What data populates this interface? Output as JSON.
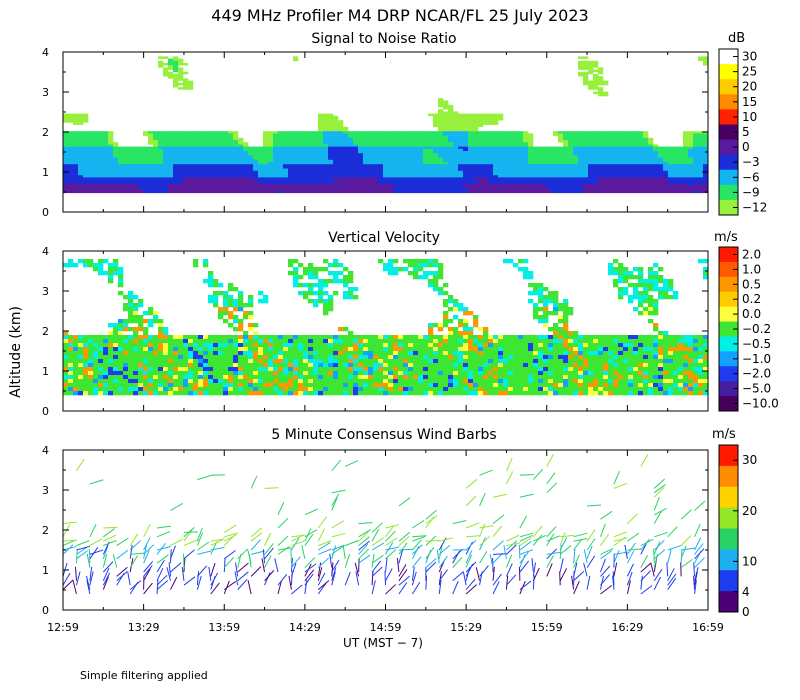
{
  "title": "449 MHz Profiler M4 DRP NCAR/FL 25 July 2023",
  "ylabel": "Altitude (km)",
  "xlabel": "UT   (MST − 7)",
  "x_ticks": [
    "12:59",
    "13:29",
    "13:59",
    "14:29",
    "14:59",
    "15:29",
    "15:59",
    "16:29",
    "16:59"
  ],
  "y_ticks": [
    "0",
    "1",
    "2",
    "3",
    "4"
  ],
  "footer_note": "Simple filtering applied",
  "chart_data": [
    {
      "type": "heatmap",
      "title": "Signal to Noise Ratio",
      "colorbar_unit": "dB",
      "colorbar_labels": [
        "30",
        "25",
        "20",
        "15",
        "10",
        "5",
        "0",
        "−3",
        "−6",
        "−9",
        "−12"
      ],
      "colorbar_colors": [
        "#ffffff",
        "#ffff00",
        "#ffcc00",
        "#ff8c00",
        "#ff2200",
        "#4a0060",
        "#5a1aa0",
        "#1a2dd8",
        "#14b4f0",
        "#28e664",
        "#96f03c"
      ],
      "ylim": [
        0,
        4
      ],
      "xlim": [
        "12:59",
        "16:59"
      ],
      "structure": [
        {
          "desc": "low SNR band",
          "altitude_km": [
            0.5,
            0.9
          ],
          "dB": -3
        },
        {
          "desc": "mid layer",
          "altitude_km": [
            0.9,
            1.6
          ],
          "dB": -6
        },
        {
          "desc": "upper returns",
          "altitude_km": [
            1.6,
            2.1
          ],
          "dB": -9
        },
        {
          "desc": "sparse aloft",
          "altitude_km": [
            2.5,
            3.9
          ],
          "dB": -12
        }
      ]
    },
    {
      "type": "heatmap",
      "title": "Vertical Velocity",
      "colorbar_unit": "m/s",
      "colorbar_labels": [
        "2.0",
        "1.0",
        "0.5",
        "0.2",
        "0.0",
        "−0.2",
        "−0.5",
        "−1.0",
        "−2.0",
        "−5.0",
        "−10.0"
      ],
      "colorbar_colors": [
        "#ff1a00",
        "#ff5a00",
        "#ff9600",
        "#ffcc00",
        "#ffff3c",
        "#3ce632",
        "#00f0e6",
        "#14a0ff",
        "#1e3cf0",
        "#461ea0",
        "#46005a"
      ],
      "ylim": [
        0,
        4
      ],
      "xlim": [
        "12:59",
        "16:59"
      ],
      "structure": [
        {
          "desc": "main data region",
          "altitude_km": [
            0.5,
            2.0
          ],
          "m_s": -0.2
        },
        {
          "desc": "intermittent aloft",
          "altitude_km": [
            2.0,
            3.9
          ],
          "m_s": -0.2
        }
      ]
    },
    {
      "type": "scatter",
      "subtype": "wind-barbs",
      "title": "5 Minute Consensus Wind Barbs",
      "colorbar_unit": "m/s",
      "colorbar_labels": [
        "30",
        "20",
        "10",
        "4",
        "0"
      ],
      "colorbar_ticks": [
        30,
        20,
        10,
        4,
        0
      ],
      "colorbar_colors": [
        "#ff1a00",
        "#ff8c00",
        "#ffd200",
        "#96e628",
        "#28d264",
        "#1eaff0",
        "#1e3cf0",
        "#4b0078"
      ],
      "ylim": [
        0,
        4
      ],
      "xlim": [
        "12:59",
        "16:59"
      ],
      "speed_by_altitude_m_s": [
        {
          "altitude_km": [
            0.5,
            1.0
          ],
          "speed": 2
        },
        {
          "altitude_km": [
            1.0,
            1.7
          ],
          "speed": 6
        },
        {
          "altitude_km": [
            1.7,
            3.5
          ],
          "speed": 9
        }
      ]
    }
  ]
}
